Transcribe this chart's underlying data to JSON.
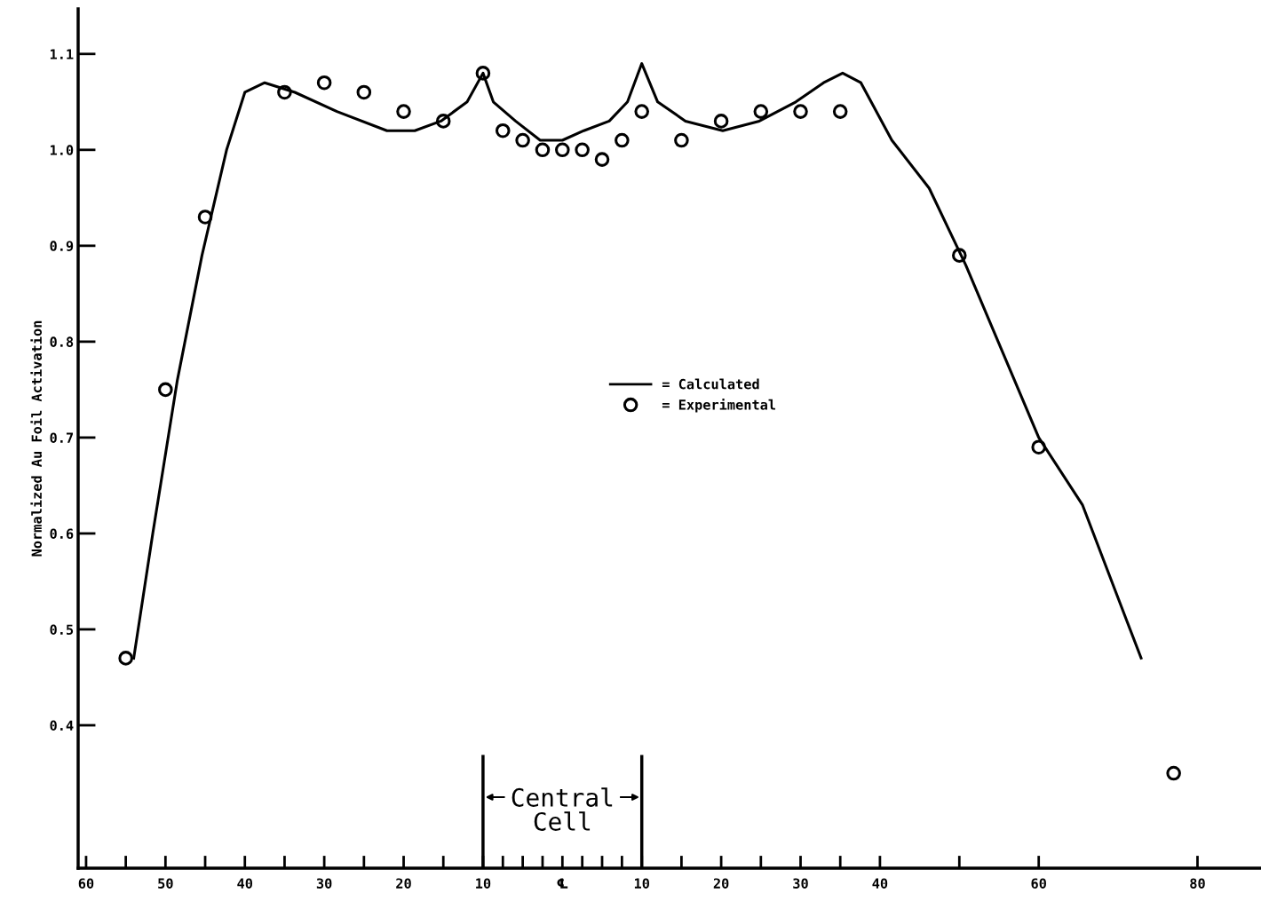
{
  "chart_data": {
    "type": "line",
    "ylabel": "Normalized Au Foil Activation",
    "xlim": [
      -61,
      88
    ],
    "ylim": [
      0.251,
      1.147
    ],
    "yticks": [
      0.4,
      0.5,
      0.6,
      0.7,
      0.8,
      0.9,
      {
        "value": 1.0,
        "label": "1.0"
      },
      1.1
    ],
    "xticks": [
      {
        "value": -60,
        "label": "60"
      },
      {
        "value": -55,
        "label": null
      },
      {
        "value": -50,
        "label": "50"
      },
      {
        "value": -45,
        "label": null
      },
      {
        "value": -40,
        "label": "40"
      },
      {
        "value": -35,
        "label": null
      },
      {
        "value": -30,
        "label": "30"
      },
      {
        "value": -25,
        "label": null
      },
      {
        "value": -20,
        "label": "20"
      },
      {
        "value": -15,
        "label": null
      },
      {
        "value": -10,
        "label": "10"
      },
      {
        "value": -7.5,
        "label": null
      },
      {
        "value": -5,
        "label": null
      },
      {
        "value": -2.5,
        "label": null
      },
      {
        "value": 0,
        "label": "℄"
      },
      {
        "value": 2.5,
        "label": null
      },
      {
        "value": 5,
        "label": null
      },
      {
        "value": 7.5,
        "label": null
      },
      {
        "value": 10,
        "label": "10"
      },
      {
        "value": 15,
        "label": null
      },
      {
        "value": 20,
        "label": "20"
      },
      {
        "value": 25,
        "label": null
      },
      {
        "value": 30,
        "label": "30"
      },
      {
        "value": 35,
        "label": null
      },
      {
        "value": 40,
        "label": "40"
      },
      {
        "value": 50,
        "label": null
      },
      {
        "value": 60,
        "label": "60"
      },
      {
        "value": 80,
        "label": "80"
      }
    ],
    "grid": false,
    "legend": "center",
    "ref_lines": [
      {
        "axis": "x",
        "value": -10,
        "color": "#000000"
      },
      {
        "axis": "x",
        "value": 10,
        "color": "#000000"
      }
    ],
    "annotations": [
      "Central\nCell"
    ],
    "series": [
      {
        "name": "= Calculated",
        "color": "#000000",
        "marker": "none",
        "line_style": "solid",
        "x": [
          -54.0,
          -51.6,
          -48.5,
          -45.4,
          -42.3,
          -40.0,
          -37.5,
          -33.7,
          -28.4,
          -22.1,
          -18.6,
          -15.3,
          -12.0,
          -10.0,
          -8.7,
          -5.9,
          -2.8,
          0.0,
          2.7,
          5.9,
          8.2,
          10.0,
          12.0,
          15.5,
          20.2,
          24.8,
          29.4,
          32.9,
          35.3,
          37.6,
          41.5,
          46.2,
          50.8,
          55.4,
          60.0,
          65.5,
          72.9
        ],
        "values": [
          0.47,
          0.6,
          0.76,
          0.89,
          1.0,
          1.06,
          1.07,
          1.06,
          1.04,
          1.02,
          1.02,
          1.03,
          1.05,
          1.08,
          1.05,
          1.03,
          1.01,
          1.01,
          1.02,
          1.03,
          1.05,
          1.09,
          1.05,
          1.03,
          1.02,
          1.03,
          1.05,
          1.07,
          1.08,
          1.07,
          1.01,
          0.96,
          0.88,
          0.79,
          0.7,
          0.63,
          0.47
        ]
      },
      {
        "name": "= Experimental",
        "type": "scatter",
        "color": "#000000",
        "marker": "circle",
        "x": [
          -55,
          -50,
          -45,
          -35,
          -30,
          -25,
          -20,
          -15,
          -10,
          -7.5,
          -5,
          -2.5,
          0,
          2.5,
          5,
          7.5,
          10,
          15,
          20,
          25,
          30,
          35,
          50,
          60,
          77
        ],
        "values": [
          0.47,
          0.75,
          0.93,
          1.06,
          1.07,
          1.06,
          1.04,
          1.03,
          1.08,
          1.02,
          1.01,
          1.0,
          1.0,
          1.0,
          0.99,
          1.01,
          1.04,
          1.01,
          1.03,
          1.04,
          1.04,
          1.04,
          0.89,
          0.69,
          0.35
        ]
      }
    ]
  }
}
